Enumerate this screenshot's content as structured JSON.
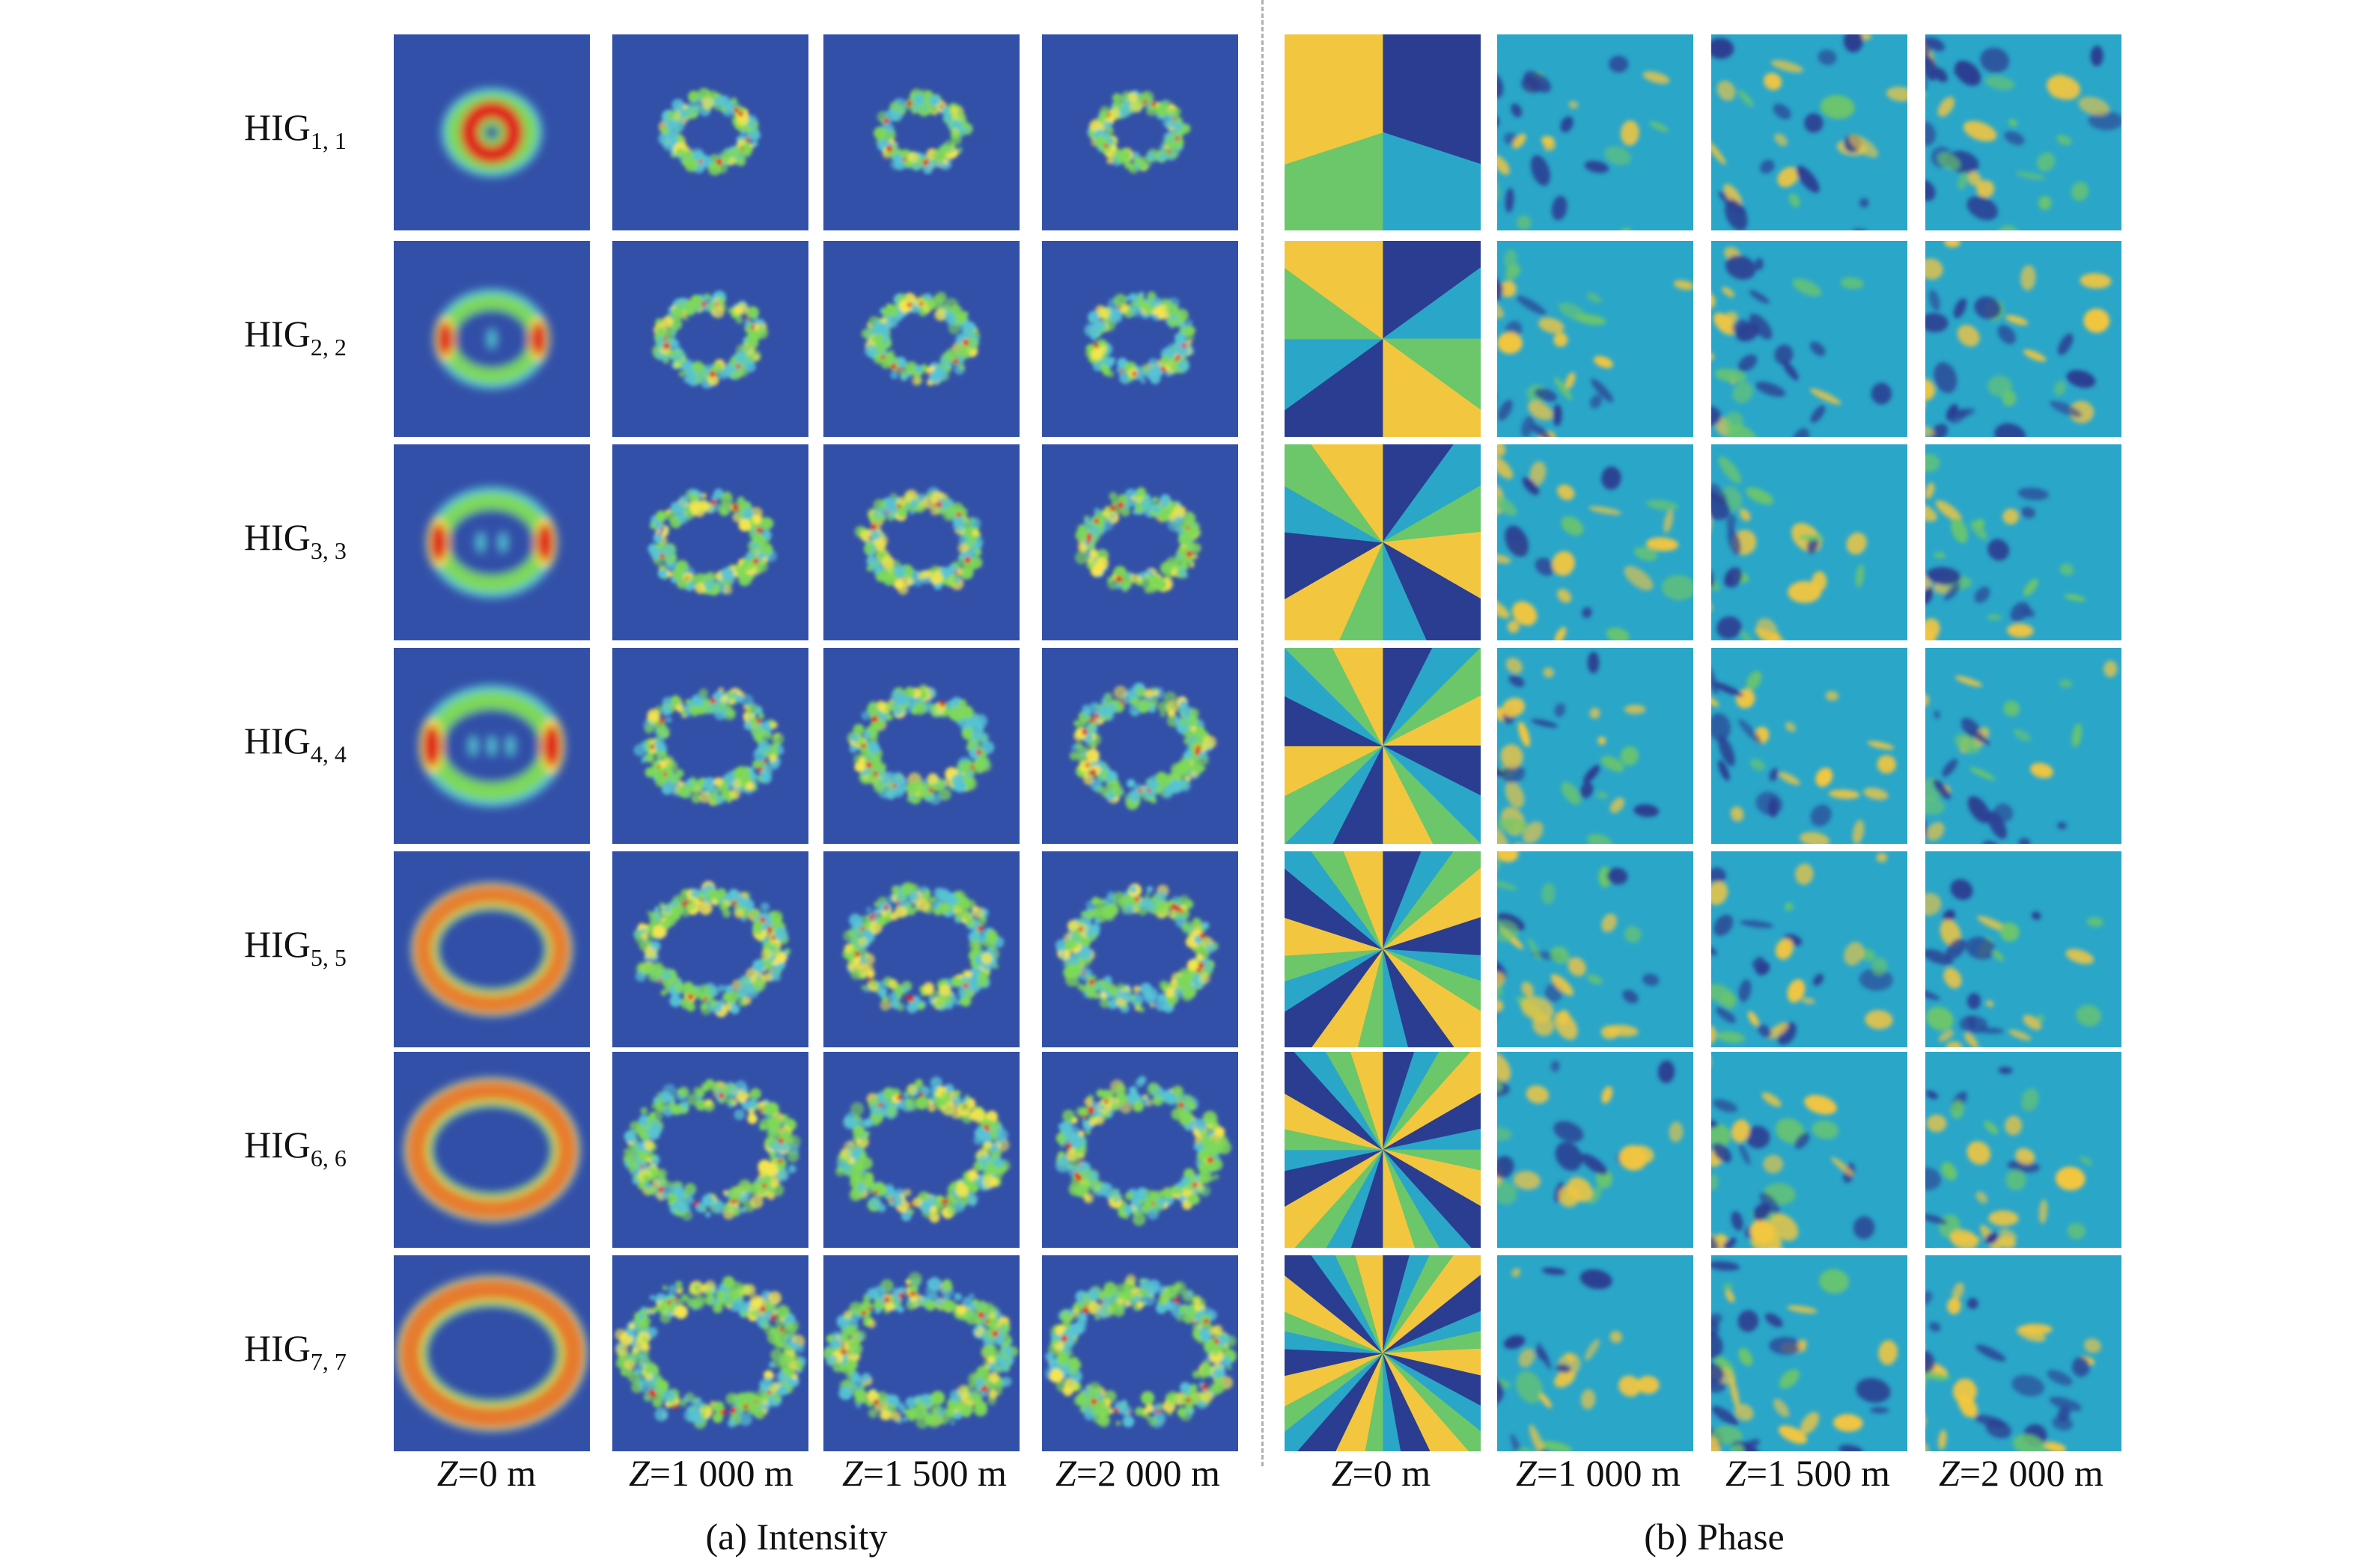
{
  "figure": {
    "rows": [
      {
        "base": "HIG",
        "sub": "1, 1",
        "order": 1
      },
      {
        "base": "HIG",
        "sub": "2, 2",
        "order": 2
      },
      {
        "base": "HIG",
        "sub": "3, 3",
        "order": 3
      },
      {
        "base": "HIG",
        "sub": "4, 4",
        "order": 4
      },
      {
        "base": "HIG",
        "sub": "5, 5",
        "order": 5
      },
      {
        "base": "HIG",
        "sub": "6, 6",
        "order": 6
      },
      {
        "base": "HIG",
        "sub": "7, 7",
        "order": 7
      }
    ],
    "columns": [
      {
        "var": "Z",
        "value": "=0 m"
      },
      {
        "var": "Z",
        "value": "=1 000 m"
      },
      {
        "var": "Z",
        "value": "=1 500 m"
      },
      {
        "var": "Z",
        "value": "=2 000 m"
      }
    ],
    "panels": [
      {
        "id": "a",
        "caption": "(a) Intensity"
      },
      {
        "id": "b",
        "caption": "(b) Phase"
      }
    ],
    "colors": {
      "intensity_background": "#3350a8",
      "intensity_low": "#56c3d6",
      "intensity_mid": "#7ed957",
      "intensity_high": "#f7e64c",
      "intensity_peak": "#e0221b",
      "phase_dark": "#2b3d91",
      "phase_mid": "#2aa6c9",
      "phase_green": "#6cc66a",
      "phase_yellow": "#f3c63f",
      "divider": "#b0b0b0"
    }
  }
}
